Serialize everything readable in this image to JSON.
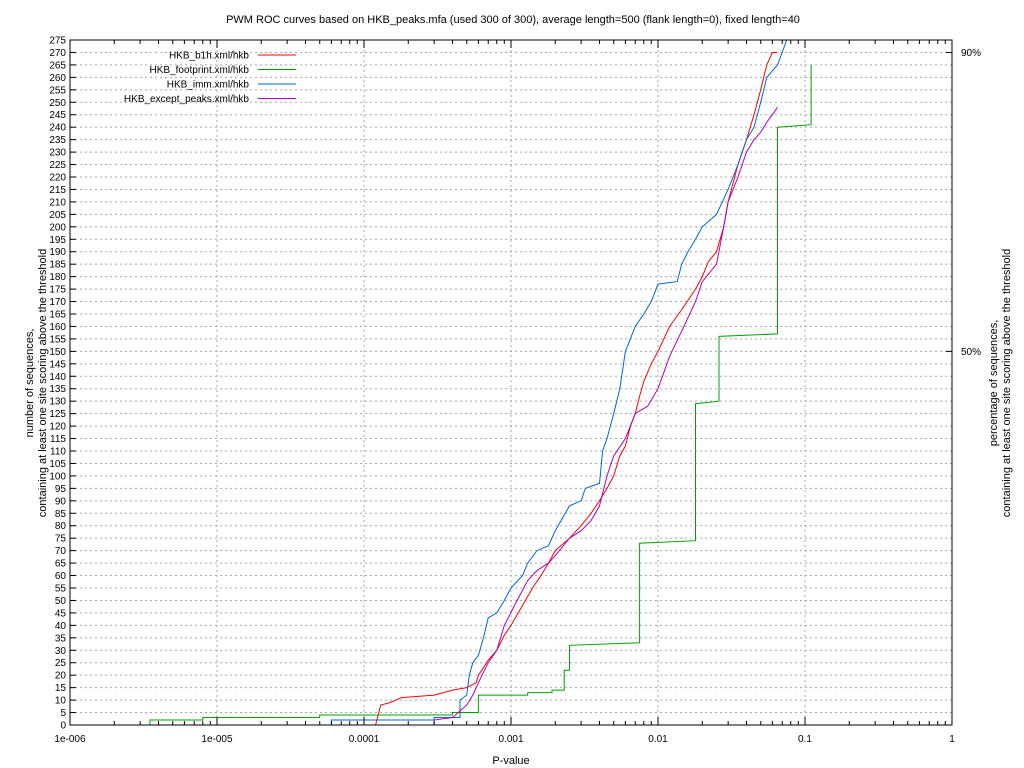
{
  "chart_data": {
    "type": "line",
    "title": "PWM ROC curves based on HKB_peaks.mfa (used 300 of 300), average length=500 (flank length=0), fixed length=40",
    "xlabel": "P-value",
    "ylabel": [
      "number of sequences,",
      "containing at least one site scoring above the threshold"
    ],
    "y2label": [
      "percentage of sequences,",
      "containing at least one site scoring above the threshold"
    ],
    "x_scale": "log",
    "xlim": [
      1e-06,
      1
    ],
    "ylim": [
      0,
      275
    ],
    "x_ticks": [
      {
        "value": 1e-06,
        "label": "1e-006"
      },
      {
        "value": 1e-05,
        "label": "1e-005"
      },
      {
        "value": 0.0001,
        "label": "0.0001"
      },
      {
        "value": 0.001,
        "label": "0.001"
      },
      {
        "value": 0.01,
        "label": "0.01"
      },
      {
        "value": 0.1,
        "label": "0.1"
      },
      {
        "value": 1,
        "label": "1"
      }
    ],
    "y_tick_step": 5,
    "y2_ticks": [
      {
        "value": 150,
        "label": "50%"
      },
      {
        "value": 270,
        "label": "90%"
      }
    ],
    "grid": true,
    "legend_position": "top-left",
    "series": [
      {
        "name": "HKB_b1h.xml/hkb",
        "color": "#ff0000",
        "points": [
          [
            0.00012,
            0
          ],
          [
            0.00013,
            8
          ],
          [
            0.00015,
            9
          ],
          [
            0.00018,
            11
          ],
          [
            0.0003,
            12
          ],
          [
            0.0004,
            14
          ],
          [
            0.0005,
            15
          ],
          [
            0.00058,
            17
          ],
          [
            0.0006,
            20
          ],
          [
            0.00065,
            23
          ],
          [
            0.0007,
            26
          ],
          [
            0.0008,
            30
          ],
          [
            0.0009,
            36
          ],
          [
            0.001,
            40
          ],
          [
            0.0012,
            48
          ],
          [
            0.0014,
            55
          ],
          [
            0.0016,
            60
          ],
          [
            0.0018,
            65
          ],
          [
            0.002,
            70
          ],
          [
            0.0025,
            75
          ],
          [
            0.003,
            80
          ],
          [
            0.0035,
            85
          ],
          [
            0.004,
            90
          ],
          [
            0.0045,
            95
          ],
          [
            0.005,
            100
          ],
          [
            0.0055,
            108
          ],
          [
            0.006,
            112
          ],
          [
            0.0065,
            120
          ],
          [
            0.007,
            125
          ],
          [
            0.0075,
            132
          ],
          [
            0.008,
            138
          ],
          [
            0.009,
            145
          ],
          [
            0.01,
            150
          ],
          [
            0.012,
            160
          ],
          [
            0.015,
            168
          ],
          [
            0.018,
            175
          ],
          [
            0.02,
            180
          ],
          [
            0.022,
            186
          ],
          [
            0.025,
            190
          ],
          [
            0.028,
            200
          ],
          [
            0.03,
            210
          ],
          [
            0.035,
            225
          ],
          [
            0.04,
            235
          ],
          [
            0.045,
            245
          ],
          [
            0.05,
            255
          ],
          [
            0.055,
            265
          ],
          [
            0.06,
            270
          ],
          [
            0.065,
            270
          ]
        ]
      },
      {
        "name": "HKB_footprint.xml/hkb",
        "color": "#00a000",
        "points": [
          [
            3.5e-06,
            0
          ],
          [
            3.5e-06,
            2
          ],
          [
            8e-06,
            2
          ],
          [
            8e-06,
            3
          ],
          [
            5e-05,
            3
          ],
          [
            5e-05,
            4
          ],
          [
            0.0004,
            4
          ],
          [
            0.0004,
            5
          ],
          [
            0.0006,
            5
          ],
          [
            0.0006,
            12
          ],
          [
            0.0013,
            12
          ],
          [
            0.0013,
            13
          ],
          [
            0.0019,
            13
          ],
          [
            0.0019,
            14
          ],
          [
            0.0023,
            14
          ],
          [
            0.0023,
            22
          ],
          [
            0.0025,
            22
          ],
          [
            0.0025,
            32
          ],
          [
            0.0075,
            33
          ],
          [
            0.0075,
            73
          ],
          [
            0.018,
            74
          ],
          [
            0.018,
            129
          ],
          [
            0.026,
            130
          ],
          [
            0.026,
            156
          ],
          [
            0.065,
            157
          ],
          [
            0.065,
            240
          ],
          [
            0.11,
            241
          ],
          [
            0.11,
            265
          ]
        ]
      },
      {
        "name": "HKB_imm.xml/hkb",
        "color": "#0066cc",
        "points": [
          [
            6e-05,
            0
          ],
          [
            6e-05,
            2
          ],
          [
            0.0003,
            2
          ],
          [
            0.0003,
            3
          ],
          [
            0.00045,
            3
          ],
          [
            0.00045,
            10
          ],
          [
            0.0005,
            12
          ],
          [
            0.00052,
            20
          ],
          [
            0.00055,
            25
          ],
          [
            0.0006,
            28
          ],
          [
            0.00065,
            35
          ],
          [
            0.0007,
            43
          ],
          [
            0.0008,
            45
          ],
          [
            0.0009,
            50
          ],
          [
            0.001,
            55
          ],
          [
            0.0012,
            60
          ],
          [
            0.0013,
            65
          ],
          [
            0.0015,
            70
          ],
          [
            0.0018,
            72
          ],
          [
            0.002,
            78
          ],
          [
            0.0025,
            88
          ],
          [
            0.003,
            90
          ],
          [
            0.0032,
            95
          ],
          [
            0.004,
            97
          ],
          [
            0.0042,
            110
          ],
          [
            0.0045,
            115
          ],
          [
            0.005,
            125
          ],
          [
            0.0055,
            135
          ],
          [
            0.006,
            150
          ],
          [
            0.007,
            160
          ],
          [
            0.008,
            165
          ],
          [
            0.009,
            170
          ],
          [
            0.01,
            177
          ],
          [
            0.0135,
            178
          ],
          [
            0.0145,
            185
          ],
          [
            0.016,
            190
          ],
          [
            0.018,
            195
          ],
          [
            0.02,
            200
          ],
          [
            0.025,
            205
          ],
          [
            0.03,
            215
          ],
          [
            0.035,
            225
          ],
          [
            0.04,
            235
          ],
          [
            0.045,
            240
          ],
          [
            0.05,
            250
          ],
          [
            0.055,
            260
          ],
          [
            0.065,
            265
          ],
          [
            0.07,
            270
          ],
          [
            0.075,
            275
          ]
        ]
      },
      {
        "name": "HKB_except_peaks.xml/hkb",
        "color": "#b000c0",
        "points": [
          [
            0.0003,
            0
          ],
          [
            0.0003,
            2
          ],
          [
            0.0004,
            3
          ],
          [
            0.0005,
            8
          ],
          [
            0.00055,
            12
          ],
          [
            0.0006,
            17
          ],
          [
            0.0007,
            25
          ],
          [
            0.0008,
            30
          ],
          [
            0.0009,
            40
          ],
          [
            0.0011,
            50
          ],
          [
            0.0013,
            58
          ],
          [
            0.0015,
            62
          ],
          [
            0.0018,
            65
          ],
          [
            0.002,
            68
          ],
          [
            0.0025,
            75
          ],
          [
            0.003,
            78
          ],
          [
            0.0035,
            82
          ],
          [
            0.004,
            88
          ],
          [
            0.0045,
            100
          ],
          [
            0.005,
            108
          ],
          [
            0.006,
            115
          ],
          [
            0.007,
            125
          ],
          [
            0.0085,
            128
          ],
          [
            0.01,
            135
          ],
          [
            0.012,
            148
          ],
          [
            0.015,
            160
          ],
          [
            0.018,
            170
          ],
          [
            0.02,
            178
          ],
          [
            0.025,
            185
          ],
          [
            0.028,
            200
          ],
          [
            0.03,
            210
          ],
          [
            0.035,
            220
          ],
          [
            0.04,
            230
          ],
          [
            0.045,
            235
          ],
          [
            0.05,
            238
          ],
          [
            0.055,
            242
          ],
          [
            0.06,
            245
          ],
          [
            0.065,
            248
          ]
        ]
      }
    ]
  }
}
